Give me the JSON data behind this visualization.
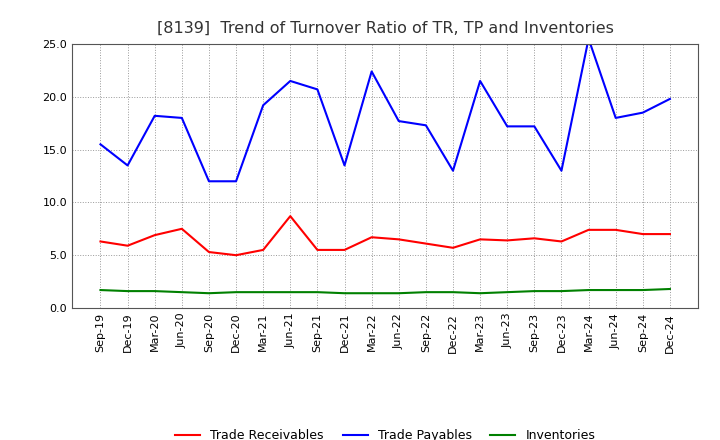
{
  "title": "[8139]  Trend of Turnover Ratio of TR, TP and Inventories",
  "x_labels": [
    "Sep-19",
    "Dec-19",
    "Mar-20",
    "Jun-20",
    "Sep-20",
    "Dec-20",
    "Mar-21",
    "Jun-21",
    "Sep-21",
    "Dec-21",
    "Mar-22",
    "Jun-22",
    "Sep-22",
    "Dec-22",
    "Mar-23",
    "Jun-23",
    "Sep-23",
    "Dec-23",
    "Mar-24",
    "Jun-24",
    "Sep-24",
    "Dec-24"
  ],
  "trade_receivables": [
    6.3,
    5.9,
    6.9,
    7.5,
    5.3,
    5.0,
    5.5,
    8.7,
    5.5,
    5.5,
    6.7,
    6.5,
    6.1,
    5.7,
    6.5,
    6.4,
    6.6,
    6.3,
    7.4,
    7.4,
    7.0,
    7.0
  ],
  "trade_payables": [
    15.5,
    13.5,
    18.2,
    18.0,
    12.0,
    12.0,
    19.2,
    21.5,
    20.7,
    13.5,
    22.4,
    17.7,
    17.3,
    13.0,
    21.5,
    17.2,
    17.2,
    13.0,
    25.5,
    18.0,
    18.5,
    19.8
  ],
  "inventories": [
    1.7,
    1.6,
    1.6,
    1.5,
    1.4,
    1.5,
    1.5,
    1.5,
    1.5,
    1.4,
    1.4,
    1.4,
    1.5,
    1.5,
    1.4,
    1.5,
    1.6,
    1.6,
    1.7,
    1.7,
    1.7,
    1.8
  ],
  "ylim": [
    0.0,
    25.0
  ],
  "yticks": [
    0.0,
    5.0,
    10.0,
    15.0,
    20.0,
    25.0
  ],
  "line_colors": {
    "trade_receivables": "#ff0000",
    "trade_payables": "#0000ff",
    "inventories": "#008000"
  },
  "legend_labels": [
    "Trade Receivables",
    "Trade Payables",
    "Inventories"
  ],
  "background_color": "#ffffff",
  "grid_color": "#999999",
  "title_color": "#333333",
  "title_fontsize": 11.5,
  "tick_fontsize": 8,
  "legend_fontsize": 9,
  "linewidth": 1.5
}
